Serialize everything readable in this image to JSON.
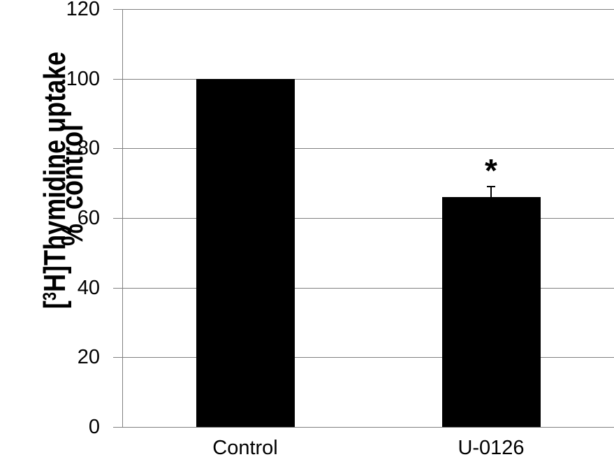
{
  "figure": {
    "ylabel": {
      "line1_prefix": "[",
      "line1_superscript": "3",
      "line1_rest": "H]Thymidine uptake",
      "line2": "%  control"
    }
  },
  "chart_data": {
    "type": "bar",
    "title": "",
    "categories": [
      "Control",
      "U-0126"
    ],
    "values": [
      100,
      66
    ],
    "errors_plus": [
      0,
      3
    ],
    "annotations": [
      {
        "category": "U-0126",
        "text": "*"
      }
    ],
    "xlabel": "",
    "ylabel": "[3H]Thymidine uptake %  control",
    "ylim": [
      0,
      120
    ],
    "yticks": [
      0,
      20,
      40,
      60,
      80,
      100,
      120
    ],
    "grid": true,
    "legend": "none",
    "bar_color": "#000000",
    "error_bar_color": "#000000",
    "axis_color": "#808080",
    "text_color": "#000000",
    "background_color": "#ffffff"
  }
}
